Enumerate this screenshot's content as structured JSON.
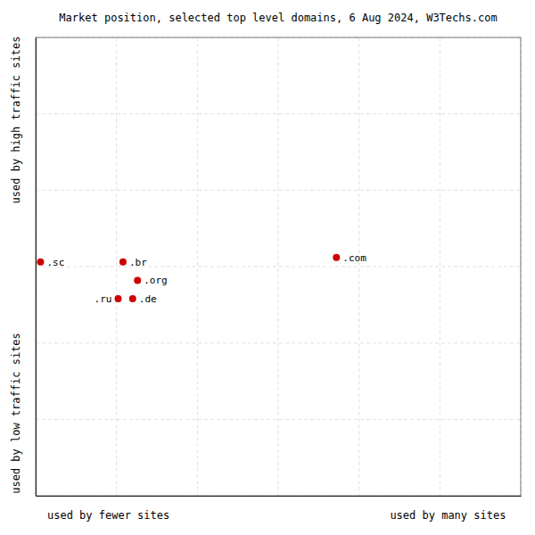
{
  "chart_data": {
    "type": "scatter",
    "title": "Market position, selected top level domains, 6 Aug 2024, W3Techs.com",
    "x_labels": [
      "used by fewer sites",
      "used by many sites"
    ],
    "y_labels": [
      "used by high traffic sites",
      "used by low traffic sites"
    ],
    "labels": [
      ".sc",
      ".br",
      ".org",
      ".ru",
      ".de",
      ".com"
    ],
    "x": [
      1,
      18,
      21,
      17,
      20,
      62
    ],
    "values": [
      51,
      51,
      47,
      43,
      43,
      52
    ],
    "color": "#cc0000",
    "xlim": [
      0,
      100
    ],
    "ylim": [
      0,
      100
    ],
    "xticks": [
      0,
      16.67,
      33.33,
      50,
      66.67,
      83.33,
      100
    ],
    "yticks": [
      0,
      16.67,
      33.33,
      50,
      66.67,
      83.33,
      100
    ],
    "grid": true,
    "tick_labels": false
  }
}
